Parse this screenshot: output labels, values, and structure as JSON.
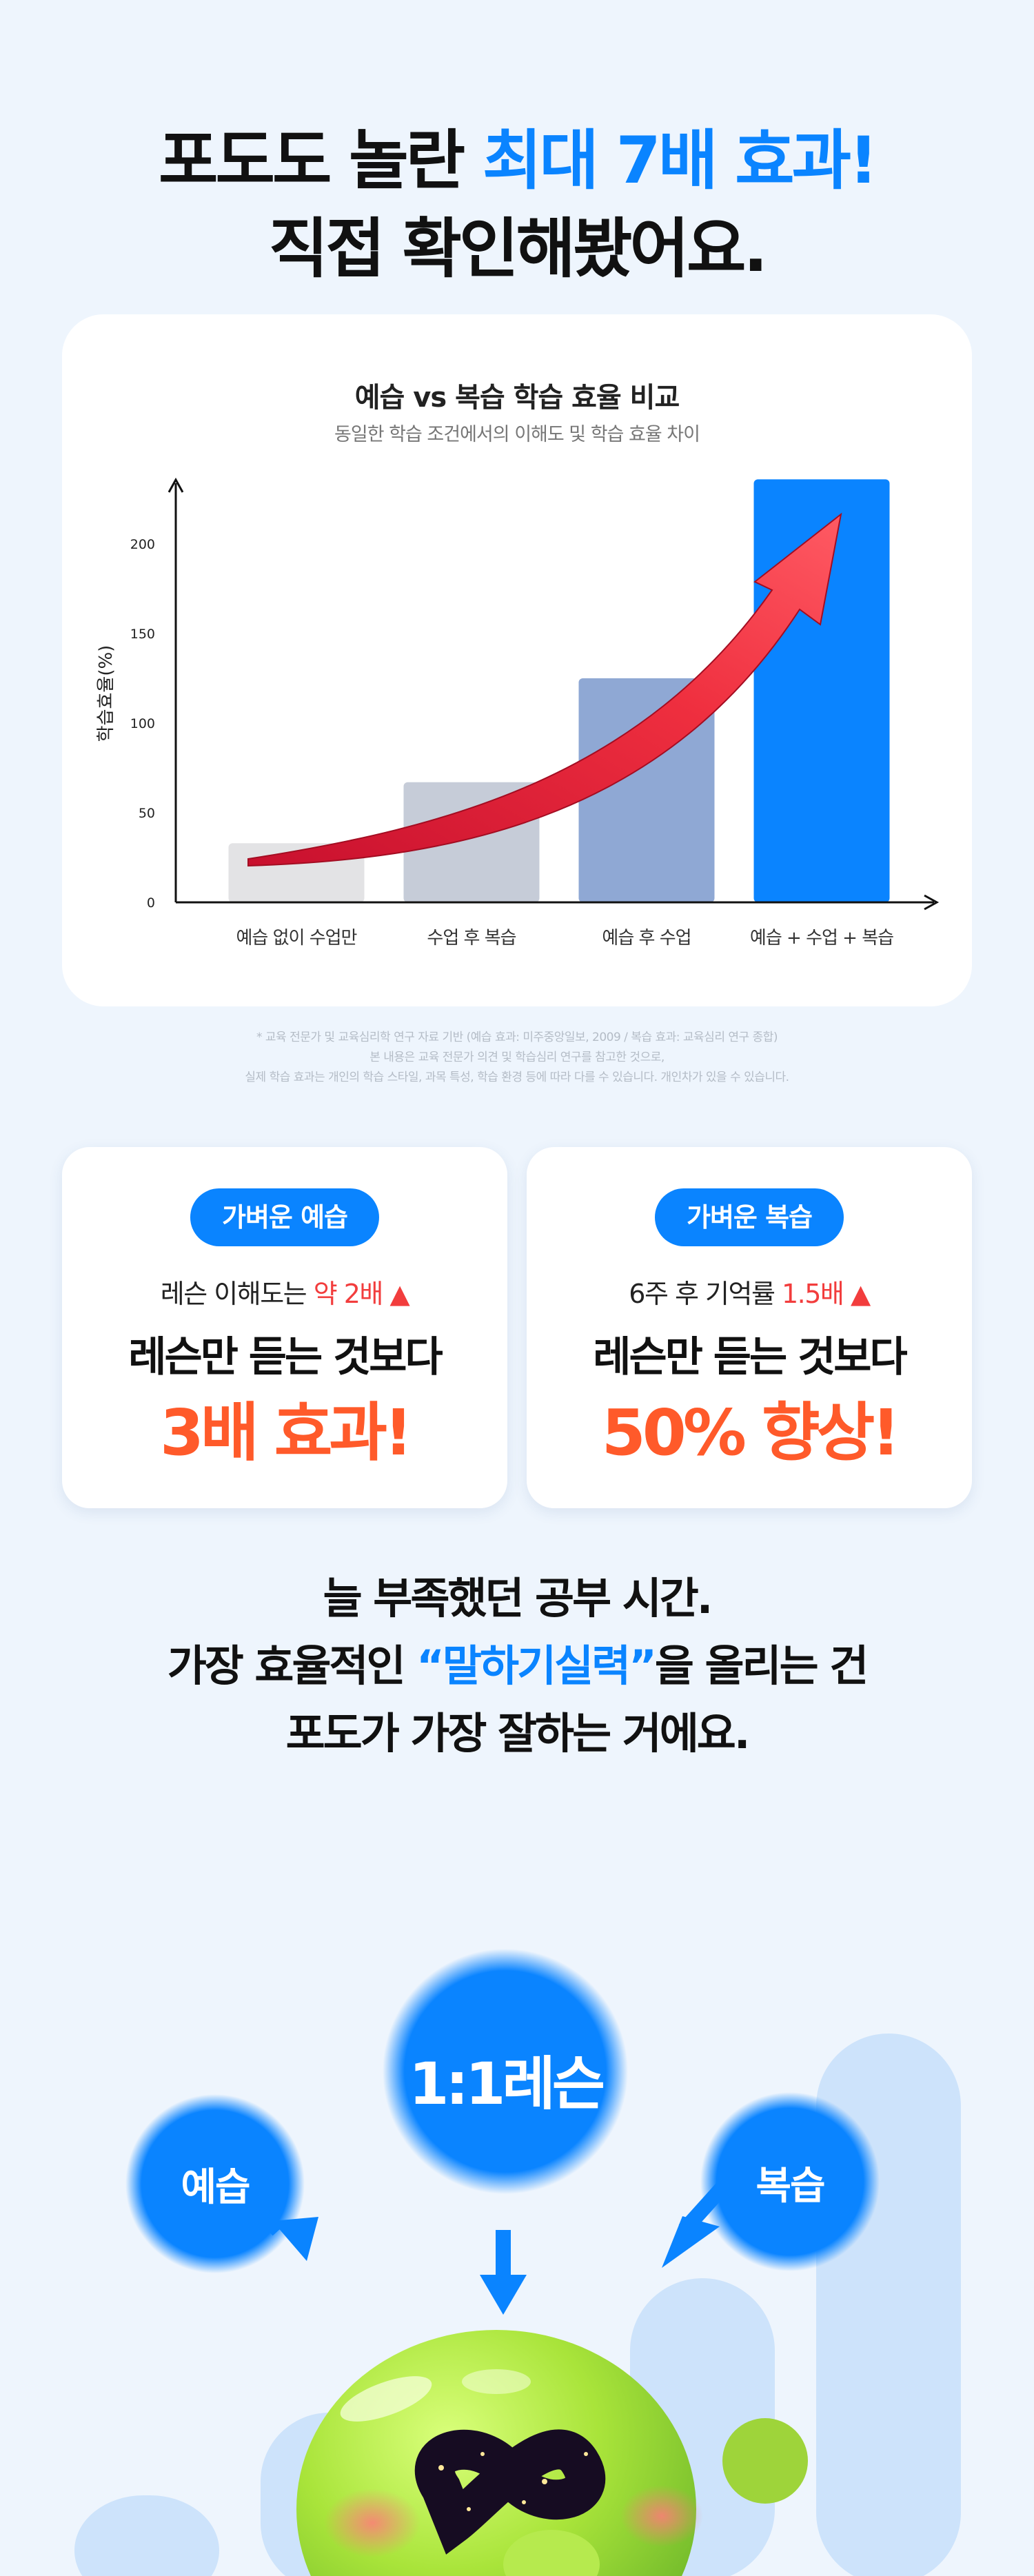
{
  "headline": {
    "line1_prefix": "포도도 놀란 ",
    "line1_accent": "최대 7배 효과!",
    "line2": "직접 확인해봤어요."
  },
  "colors": {
    "accent_blue": "#0a84ff",
    "highlight_red": "#f23d3d",
    "highlight_orange": "#ff5a2a",
    "background": "#eef5fd"
  },
  "chart_data": {
    "type": "bar",
    "title": "예습 vs 복습 학습 효율 비교",
    "subtitle": "동일한 학습 조건에서의 이해도 및 학습 효율 차이",
    "ylabel": "학습효율(%)",
    "xlabel": "",
    "categories": [
      "예습 없이 수업만",
      "수업 후 복습",
      "예습 후 수업",
      "예습 + 수업 + 복습"
    ],
    "values": [
      33,
      67,
      125,
      236
    ],
    "bar_colors": [
      "#e3e3e5",
      "#c6ccd8",
      "#8fa8d4",
      "#0a84ff"
    ],
    "ylim": [
      0,
      236
    ],
    "yticks": [
      0,
      50,
      100,
      150,
      200
    ],
    "grid": false,
    "annotation": "upward-trend-arrow"
  },
  "footnotes": [
    "* 교육 전문가 및 교육심리학 연구 자료 기반 (예습 효과: 미주중앙일보, 2009 / 복습 효과: 교육심리 연구 종합)",
    "본 내용은 교육 전문가 의견 및 학습심리 연구를 참고한 것으로,",
    "실제 학습 효과는 개인의 학습 스타일, 과목 특성, 학습 환경 등에 따라 다를 수 있습니다. 개인차가 있을 수 있습니다."
  ],
  "benefits": [
    {
      "pill": "가벼운 예습",
      "line1_prefix": "레슨 이해도는 ",
      "line1_highlight": "약 2배 ▲",
      "line2": "레슨만 듣는 것보다",
      "big": "3배 효과!"
    },
    {
      "pill": "가벼운 복습",
      "line1_prefix": "6주 후 기억률 ",
      "line1_highlight": "1.5배 ▲",
      "line2": "레슨만 듣는 것보다",
      "big": "50% 향상!"
    }
  ],
  "message": {
    "line1": "늘 부족했던 공부 시간.",
    "line2_prefix": "가장 효율적인 ",
    "line2_accent": "“말하기실력”",
    "line2_suffix": "을 올리는 건",
    "line3": "포도가 가장 잘하는 거에요."
  },
  "illustration": {
    "bubble_left": "예습",
    "bubble_center": "1:1레슨",
    "bubble_right": "복습",
    "mascot": "green-grape-mascot"
  }
}
